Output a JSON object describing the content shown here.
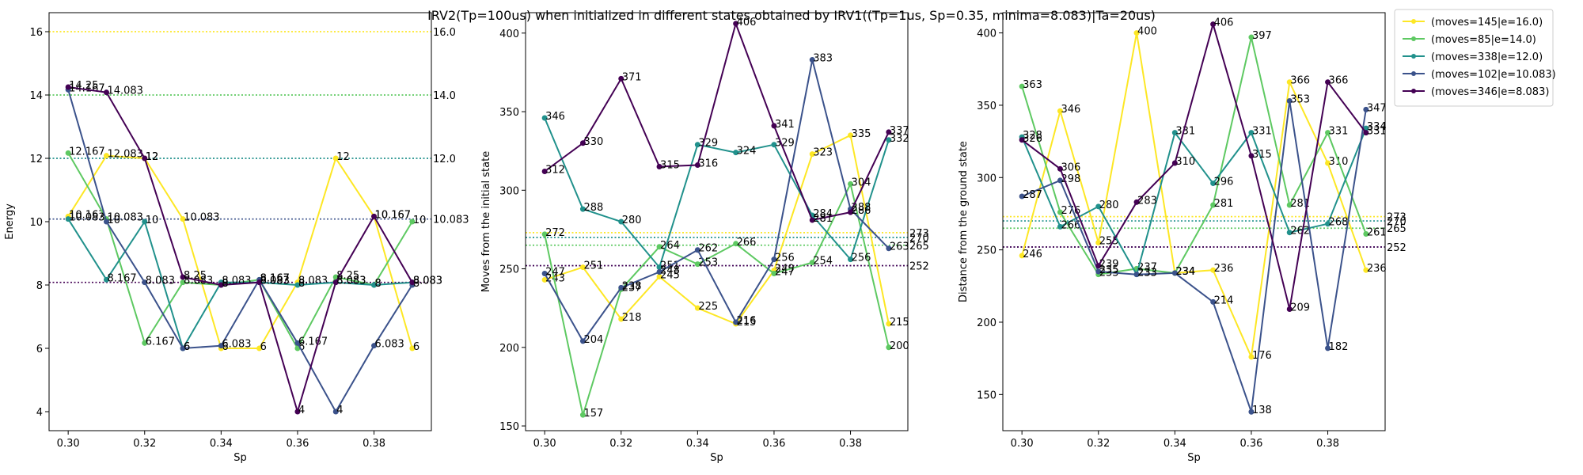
{
  "figure_title": "IRV2(Tp=100us) when initialized in different states obtained by IRV1((Tp=1us, Sp=0.35, minima=8.083)|Ta=20us)",
  "legend": {
    "placement": "upper-right-outside",
    "entries": [
      {
        "label": "(moves=145|e=16.0)",
        "color": "#fde725"
      },
      {
        "label": "(moves=85|e=14.0)",
        "color": "#5ec962"
      },
      {
        "label": "(moves=338|e=12.0)",
        "color": "#21918c"
      },
      {
        "label": "(moves=102|e=10.083)",
        "color": "#3b528b"
      },
      {
        "label": "(moves=346|e=8.083)",
        "color": "#440154"
      }
    ]
  },
  "chart_data": [
    {
      "type": "line",
      "xlabel": "Sp",
      "ylabel": "Energy",
      "xlim": [
        0.295,
        0.395
      ],
      "ylim": [
        3.4,
        16.6
      ],
      "xticks": [
        "0.30",
        "0.32",
        "0.34",
        "0.36",
        "0.38"
      ],
      "yticks": [
        "4",
        "6",
        "8",
        "10",
        "12",
        "14",
        "16"
      ],
      "x": [
        0.3,
        0.31,
        0.32,
        0.33,
        0.34,
        0.35,
        0.36,
        0.37,
        0.38,
        0.39
      ],
      "series": [
        {
          "color": "#fde725",
          "values": [
            10.167,
            12.083,
            12.0,
            10.083,
            6.0,
            6.0,
            8.083,
            12.0,
            10.167,
            6.0
          ]
        },
        {
          "color": "#5ec962",
          "values": [
            12.167,
            10.083,
            6.167,
            8.083,
            8.0,
            8.167,
            6.0,
            8.25,
            8.0,
            10.0
          ]
        },
        {
          "color": "#21918c",
          "values": [
            10.083,
            8.167,
            10.0,
            6.0,
            8.083,
            8.083,
            8.0,
            8.083,
            8.0,
            8.083
          ]
        },
        {
          "color": "#3b528b",
          "values": [
            14.167,
            10.0,
            8.083,
            6.0,
            6.083,
            8.167,
            6.167,
            4.0,
            6.083,
            8.0
          ]
        },
        {
          "color": "#440154",
          "values": [
            14.25,
            14.083,
            12.0,
            8.25,
            8.0,
            8.083,
            4.0,
            8.083,
            10.167,
            8.083
          ]
        }
      ],
      "hlines": [
        {
          "y": 16.0,
          "label": "16.0",
          "color": "#fde725"
        },
        {
          "y": 14.0,
          "label": "14.0",
          "color": "#5ec962"
        },
        {
          "y": 12.0,
          "label": "12.0",
          "color": "#21918c"
        },
        {
          "y": 10.083,
          "label": "10.083",
          "color": "#3b528b"
        },
        {
          "y": 8.083,
          "label": "",
          "color": "#440154"
        }
      ]
    },
    {
      "type": "line",
      "xlabel": "Sp",
      "ylabel": "Moves from the initial state",
      "xlim": [
        0.295,
        0.395
      ],
      "ylim": [
        147,
        413
      ],
      "xticks": [
        "0.30",
        "0.32",
        "0.34",
        "0.36",
        "0.38"
      ],
      "yticks": [
        "150",
        "200",
        "250",
        "300",
        "350",
        "400"
      ],
      "x": [
        0.3,
        0.31,
        0.32,
        0.33,
        0.34,
        0.35,
        0.36,
        0.37,
        0.38,
        0.39
      ],
      "series": [
        {
          "color": "#fde725",
          "values": [
            243,
            251,
            218,
            245,
            225,
            215,
            249,
            323,
            335,
            215
          ]
        },
        {
          "color": "#5ec962",
          "values": [
            272,
            157,
            237,
            264,
            253,
            266,
            247,
            254,
            304,
            200
          ]
        },
        {
          "color": "#21918c",
          "values": [
            346,
            288,
            280,
            251,
            329,
            324,
            329,
            284,
            256,
            332
          ]
        },
        {
          "color": "#3b528b",
          "values": [
            247,
            204,
            238,
            248,
            262,
            216,
            256,
            383,
            288,
            263
          ]
        },
        {
          "color": "#440154",
          "values": [
            312,
            330,
            371,
            315,
            316,
            406,
            341,
            281,
            286,
            337
          ]
        }
      ],
      "hlines": [
        {
          "y": 273,
          "label": "273",
          "color": "#fde725"
        },
        {
          "y": 265,
          "label": "265",
          "color": "#5ec962"
        },
        {
          "y": 270,
          "label": "270",
          "color": "#21918c"
        },
        {
          "y": 252,
          "label": "252",
          "color": "#3b528b"
        },
        {
          "y": 252,
          "label": "",
          "color": "#440154"
        }
      ]
    },
    {
      "type": "line",
      "xlabel": "Sp",
      "ylabel": "Distance from the ground state",
      "xlim": [
        0.295,
        0.395
      ],
      "ylim": [
        125,
        414
      ],
      "xticks": [
        "0.30",
        "0.32",
        "0.34",
        "0.36",
        "0.38"
      ],
      "yticks": [
        "150",
        "200",
        "250",
        "300",
        "350",
        "400"
      ],
      "x": [
        0.3,
        0.31,
        0.32,
        0.33,
        0.34,
        0.35,
        0.36,
        0.37,
        0.38,
        0.39
      ],
      "series": [
        {
          "color": "#fde725",
          "values": [
            246,
            346,
            255,
            400,
            234,
            236,
            176,
            366,
            310,
            236
          ]
        },
        {
          "color": "#5ec962",
          "values": [
            363,
            276,
            233,
            237,
            234,
            281,
            397,
            281,
            331,
            261
          ]
        },
        {
          "color": "#21918c",
          "values": [
            328,
            266,
            280,
            233,
            331,
            296,
            331,
            262,
            268,
            334
          ]
        },
        {
          "color": "#3b528b",
          "values": [
            287,
            298,
            235,
            233,
            234,
            214,
            138,
            353,
            182,
            347
          ]
        },
        {
          "color": "#440154",
          "values": [
            326,
            306,
            239,
            283,
            310,
            406,
            315,
            209,
            366,
            331
          ]
        }
      ],
      "hlines": [
        {
          "y": 273,
          "label": "273",
          "color": "#fde725"
        },
        {
          "y": 265,
          "label": "265",
          "color": "#5ec962"
        },
        {
          "y": 270,
          "label": "270",
          "color": "#21918c"
        },
        {
          "y": 252,
          "label": "252",
          "color": "#3b528b"
        },
        {
          "y": 252,
          "label": "",
          "color": "#440154"
        }
      ]
    }
  ]
}
